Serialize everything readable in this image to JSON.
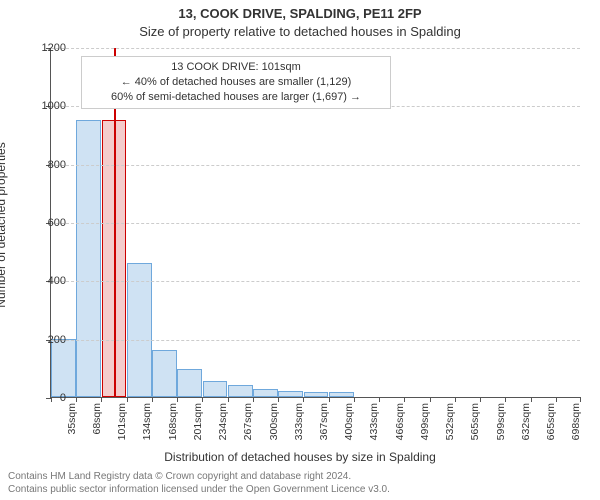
{
  "title": "13, COOK DRIVE, SPALDING, PE11 2FP",
  "subtitle": "Size of property relative to detached houses in Spalding",
  "xlabel": "Distribution of detached houses by size in Spalding",
  "ylabel": "Number of detached properties",
  "attribution_line1": "Contains HM Land Registry data © Crown copyright and database right 2024.",
  "attribution_line2": "Contains public sector information licensed under the Open Government Licence v3.0.",
  "chart": {
    "type": "histogram",
    "ylim": [
      0,
      1200
    ],
    "ytick_step": 200,
    "background_color": "#ffffff",
    "grid_color": "#cccccc",
    "axis_color": "#555555",
    "bar_fill": "#cfe2f3",
    "bar_border": "#6fa8dc",
    "marker_fill": "#f4cccc",
    "marker_border": "#cc0000",
    "title_fontsize": 13,
    "label_fontsize": 12,
    "tick_fontsize": 11,
    "categories": [
      "35sqm",
      "68sqm",
      "101sqm",
      "134sqm",
      "168sqm",
      "201sqm",
      "234sqm",
      "267sqm",
      "300sqm",
      "333sqm",
      "367sqm",
      "400sqm",
      "433sqm",
      "466sqm",
      "499sqm",
      "532sqm",
      "565sqm",
      "599sqm",
      "632sqm",
      "665sqm",
      "698sqm"
    ],
    "values": [
      200,
      950,
      950,
      460,
      160,
      95,
      55,
      40,
      28,
      22,
      18,
      16,
      0,
      0,
      0,
      0,
      0,
      0,
      0,
      0,
      0
    ],
    "marker_index": 2
  },
  "annotation": {
    "line1": "13 COOK DRIVE: 101sqm",
    "line2": "← 40% of detached houses are smaller (1,129)",
    "line3": "60% of semi-detached houses are larger (1,697) →",
    "border_color": "#cccccc",
    "fontsize": 11
  }
}
